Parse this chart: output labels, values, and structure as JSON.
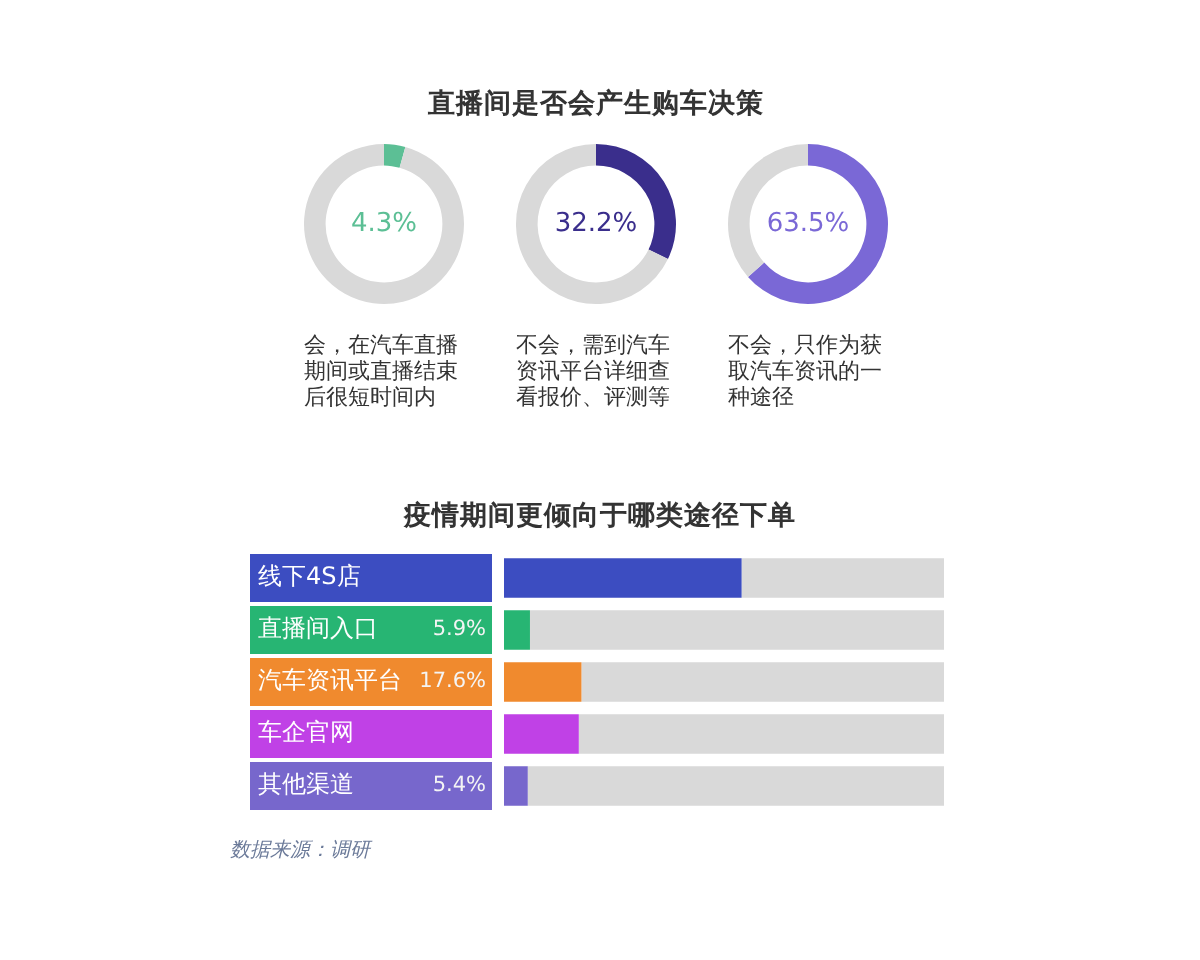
{
  "chart_data": [
    {
      "type": "donut",
      "categories": [
        null,
        null
      ],
      "values": [
        4.3,
        95.7
      ],
      "colors": [
        "#5cbf95",
        "#d9d9d9"
      ],
      "value_labels": [
        "4.3%",
        null
      ],
      "annotations": [
        "会，在汽车直播期间或直播结束后很短时间内"
      ]
    },
    {
      "type": "donut",
      "title": "直播间是否会产生购车决策",
      "categories": [
        null,
        null
      ],
      "values": [
        32.2,
        67.8
      ],
      "colors": [
        "#3a2e8c",
        "#d9d9d9"
      ],
      "value_labels": [
        "32.2%",
        null
      ],
      "annotations": [
        "不会，需到汽车资讯平台详细查看报价、评测等"
      ]
    },
    {
      "type": "donut",
      "categories": [
        null,
        null
      ],
      "values": [
        63.5,
        36.5
      ],
      "colors": [
        "#7a68d6",
        "#d9d9d9"
      ],
      "value_labels": [
        "63.5%",
        null
      ],
      "annotations": [
        "不会，只作为获取汽车资讯的一种途径"
      ]
    },
    {
      "type": "bar",
      "orientation": "horizontal",
      "stacked": true,
      "title": "疫情期间更倾向于哪类途径下单",
      "categories": [
        "线下4S店",
        "直播间入口",
        "汽车资讯平台",
        "车企官网",
        "其他渠道"
      ],
      "series": [
        {
          "colors": [
            "#3c4dc1",
            "#27b573",
            "#f08a2e",
            "#c041e6",
            "#7767cc"
          ],
          "values": [
            54,
            5.9,
            17.6,
            17,
            5.4
          ],
          "value_labels": [
            null,
            "5.9%",
            "17.6%",
            null,
            "5.4%"
          ]
        },
        {
          "color": "#d9d9d9",
          "values": [
            46,
            94.1,
            82.4,
            83,
            94.6
          ]
        }
      ],
      "xlim": [
        0,
        100
      ],
      "tick_labels": "y",
      "annotations": [
        "数据来源：调研"
      ]
    }
  ]
}
